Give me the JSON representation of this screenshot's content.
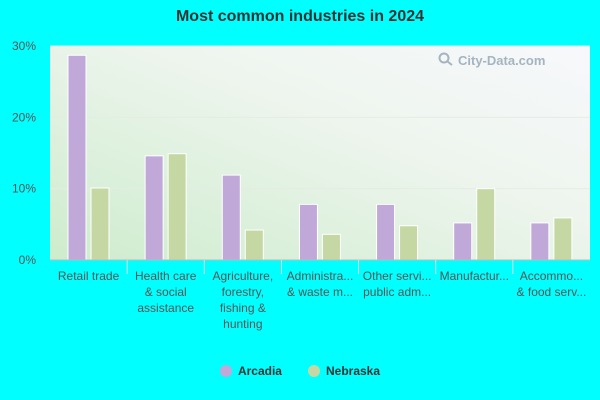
{
  "watermark": {
    "text": "City-Data.com"
  },
  "colors": {
    "arcadia": "#c0a8d9",
    "nebraska": "#c5d8a4",
    "background": "#00ffff"
  },
  "chart_data": {
    "type": "bar",
    "title": "Most common industries in 2024",
    "xlabel": "",
    "ylabel": "",
    "ylim": [
      0,
      30
    ],
    "yticks": [
      "0%",
      "10%",
      "20%",
      "30%"
    ],
    "grid": true,
    "legend_position": "bottom",
    "categories": [
      [
        "Retail trade"
      ],
      [
        "Health care",
        "& social",
        "assistance"
      ],
      [
        "Agriculture,",
        "forestry,",
        "fishing &",
        "hunting"
      ],
      [
        "Administra...",
        "& waste m..."
      ],
      [
        "Other servi...",
        "public adm..."
      ],
      [
        "Manufactur..."
      ],
      [
        "Accommo...",
        "& food serv..."
      ]
    ],
    "series": [
      {
        "name": "Arcadia",
        "color": "#c0a8d9",
        "values": [
          28.7,
          14.6,
          11.9,
          7.8,
          7.8,
          5.2,
          5.2
        ]
      },
      {
        "name": "Nebraska",
        "color": "#c5d8a4",
        "values": [
          10.1,
          14.9,
          4.2,
          3.6,
          4.8,
          10.0,
          5.9
        ]
      }
    ]
  }
}
